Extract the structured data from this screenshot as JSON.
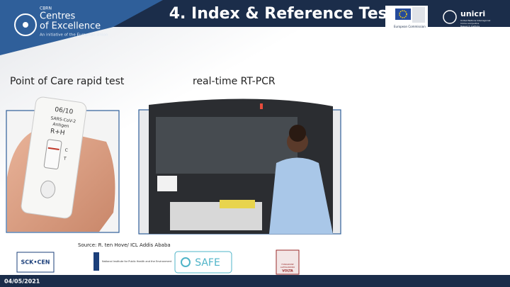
{
  "header": {
    "logo_small": "CBRN",
    "logo_line1": "Centres",
    "logo_line2": "of Excellence",
    "logo_tagline": "An initiative of the European Union",
    "title": "4. Index & Reference Test",
    "ec_label": "European Commission",
    "unicri": "unicri",
    "unicri_sub": [
      "United Nations Interregional",
      "Crime and Justice",
      "Research Institute"
    ]
  },
  "content": {
    "left_caption": "Point of Care rapid test",
    "right_caption": "real-time RT-PCR",
    "test_marking": [
      "06/10",
      "SARS-CoV-2",
      "Antigen",
      "R+H"
    ],
    "test_letters": [
      "C",
      "T"
    ],
    "source": "Source: R. ten Hove/ ICL Addis Ababa"
  },
  "footer": {
    "logos": [
      "SCK•CEN",
      "National Institute for Public Health and the Environment",
      "SAFE",
      "FONDAZIONE",
      "ALESSANDRO",
      "VOLTA"
    ],
    "date": "04/05/2021"
  }
}
